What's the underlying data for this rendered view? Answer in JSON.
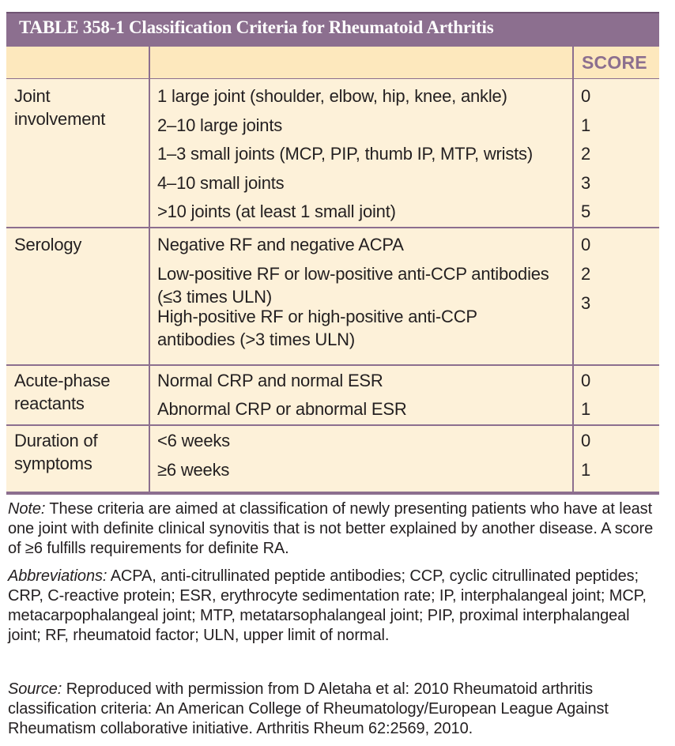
{
  "title": "TABLE 358-1  Classification Criteria for Rheumatoid Arthritis",
  "score_header": "SCORE",
  "groups": [
    {
      "category_lines": [
        "Joint",
        "involvement"
      ],
      "items": [
        {
          "lines": [
            "1 large joint (shoulder, elbow, hip, knee, ankle)"
          ],
          "score": "0"
        },
        {
          "lines": [
            "2–10 large joints"
          ],
          "score": "1"
        },
        {
          "lines": [
            "1–3 small joints (MCP, PIP, thumb IP, MTP, wrists)"
          ],
          "score": "2"
        },
        {
          "lines": [
            "4–10 small joints"
          ],
          "score": "3"
        },
        {
          "lines": [
            ">10 joints (at least 1 small joint)"
          ],
          "score": "5"
        }
      ]
    },
    {
      "category_lines": [
        "Serology"
      ],
      "items": [
        {
          "lines": [
            "Negative RF and negative ACPA"
          ],
          "score": "0"
        },
        {
          "lines": [
            "Low-positive RF or low-positive anti-CCP antibodies",
            "(≤3 times ULN)"
          ],
          "score": "2"
        },
        {
          "lines": [
            "High-positive RF or high-positive anti-CCP",
            "antibodies (>3 times ULN)"
          ],
          "score": "3"
        }
      ]
    },
    {
      "category_lines": [
        "Acute-phase",
        "reactants"
      ],
      "items": [
        {
          "lines": [
            "Normal CRP and normal ESR"
          ],
          "score": "0"
        },
        {
          "lines": [
            "Abnormal CRP or abnormal ESR"
          ],
          "score": "1"
        }
      ]
    },
    {
      "category_lines": [
        "Duration of",
        "symptoms"
      ],
      "items": [
        {
          "lines": [
            "<6 weeks"
          ],
          "score": "0"
        },
        {
          "lines": [
            "≥6 weeks"
          ],
          "score": "1"
        }
      ]
    }
  ],
  "notes": [
    {
      "label": "Note:",
      "text": " These criteria are aimed at classification of newly presenting patients who have at least one joint with definite clinical synovitis that is not better explained by another disease. A score of ≥6 fulfills requirements for definite RA."
    },
    {
      "label": "Abbreviations:",
      "text": " ACPA, anti-citrullinated peptide antibodies; CCP, cyclic citrullinated peptides; CRP, C-reactive protein; ESR, erythrocyte sedimentation rate; IP, interphalangeal joint; MCP, metacarpophalangeal joint; MTP, metatarsophalangeal joint; PIP, proximal interphalangeal joint; RF, rheumatoid factor; ULN, upper limit of normal."
    },
    {
      "label": "Source:",
      "text": " Reproduced with permission from D Aletaha et al: 2010 Rheumatoid arthritis classification criteria: An American College of Rheumatology/European League Against Rheumatism collaborative initiative. Arthritis Rheum 62:2569, 2010."
    }
  ]
}
